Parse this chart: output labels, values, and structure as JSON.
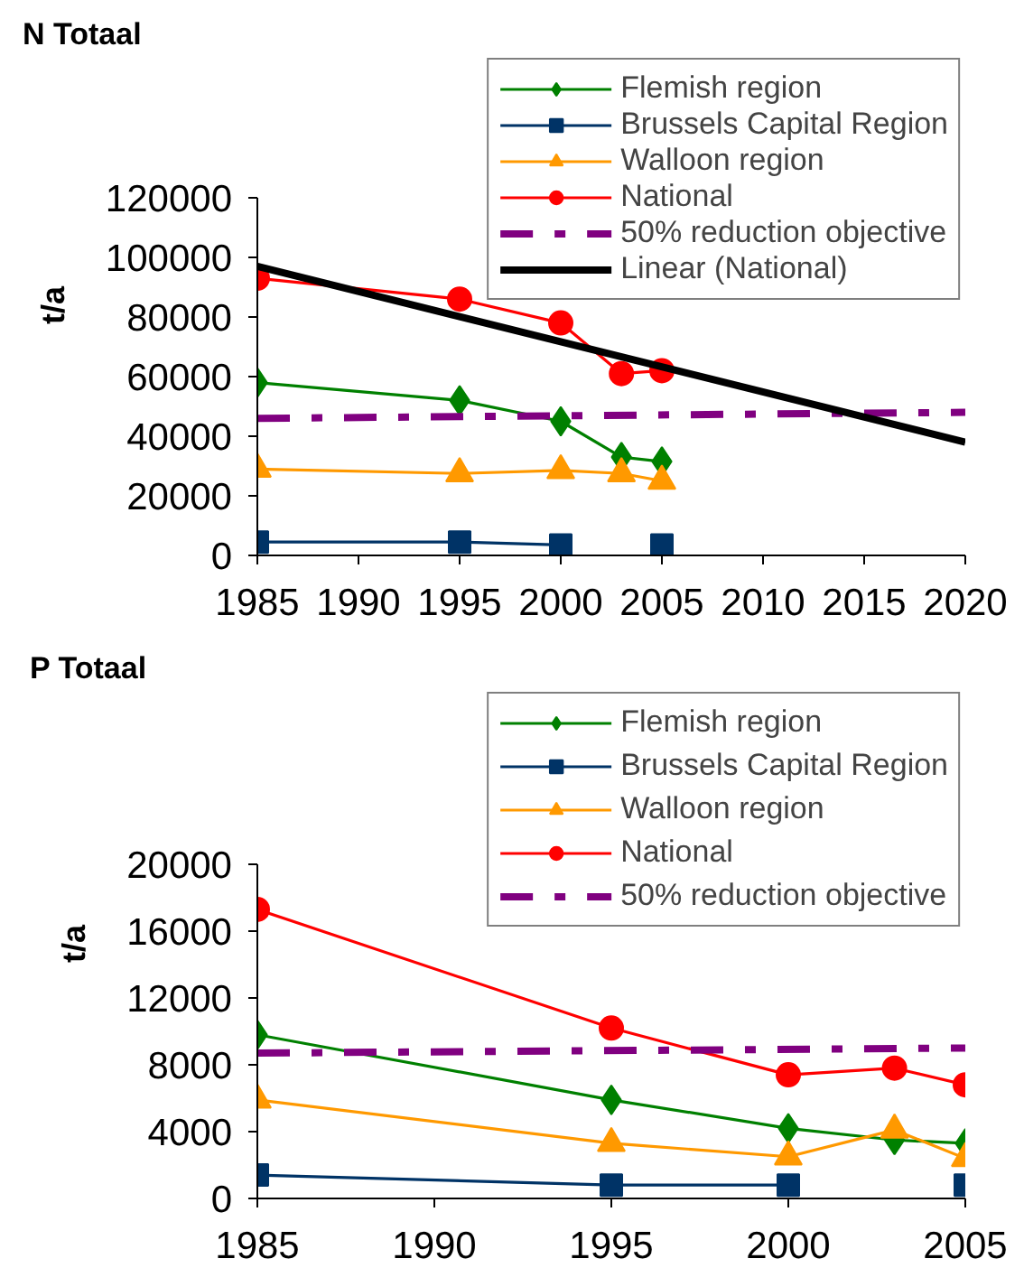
{
  "chart_data": [
    {
      "type": "line",
      "title": "N Totaal",
      "ylabel": "t/a",
      "x": [
        1985,
        1995,
        2000,
        2003,
        2005
      ],
      "xlim": [
        1985,
        2020
      ],
      "xticks": [
        1985,
        1990,
        1995,
        2000,
        2005,
        2010,
        2015,
        2020
      ],
      "ylim": [
        0,
        120000
      ],
      "yticks": [
        0,
        20000,
        40000,
        60000,
        80000,
        100000,
        120000
      ],
      "legend": "top right",
      "series": [
        {
          "name": "Flemish region",
          "color": "#008000",
          "marker": "diamond",
          "values": [
            58000,
            52000,
            45000,
            33000,
            31500
          ]
        },
        {
          "name": "Brussels Capital Region",
          "color": "#003366",
          "marker": "square",
          "values": [
            4500,
            4500,
            3500,
            null,
            3500
          ]
        },
        {
          "name": "Walloon region",
          "color": "#ff9900",
          "marker": "triangle",
          "values": [
            29000,
            27500,
            28500,
            27500,
            25000
          ]
        },
        {
          "name": "National",
          "color": "#ff0000",
          "marker": "circle",
          "values": [
            93000,
            86000,
            78000,
            61000,
            62000
          ]
        },
        {
          "name": "50% reduction objective",
          "color": "#800080",
          "marker": "none",
          "line_style": "dashed",
          "x": [
            1985,
            2020
          ],
          "values": [
            46000,
            48000
          ]
        },
        {
          "name": "Linear (National)",
          "color": "#000000",
          "marker": "none",
          "x": [
            1985,
            2020
          ],
          "values": [
            97000,
            38000
          ]
        }
      ]
    },
    {
      "type": "line",
      "title": "P Totaal",
      "ylabel": "t/a",
      "x": [
        1985,
        1995,
        2000,
        2003,
        2005
      ],
      "xlim": [
        1985,
        2005
      ],
      "xticks": [
        1985,
        1990,
        1995,
        2000,
        2005
      ],
      "ylim": [
        0,
        20000
      ],
      "yticks": [
        0,
        4000,
        8000,
        12000,
        16000,
        20000
      ],
      "legend": "top right",
      "series": [
        {
          "name": "Flemish region",
          "color": "#008000",
          "marker": "diamond",
          "values": [
            9800,
            5900,
            4200,
            3500,
            3300
          ]
        },
        {
          "name": "Brussels Capital Region",
          "color": "#003366",
          "marker": "square",
          "values": [
            1400,
            800,
            800,
            null,
            800
          ]
        },
        {
          "name": "Walloon region",
          "color": "#ff9900",
          "marker": "triangle",
          "values": [
            5900,
            3300,
            2500,
            4100,
            2400
          ]
        },
        {
          "name": "National",
          "color": "#ff0000",
          "marker": "circle",
          "values": [
            17300,
            10200,
            7400,
            7800,
            6800
          ]
        },
        {
          "name": "50% reduction objective",
          "color": "#800080",
          "marker": "none",
          "line_style": "dashed",
          "x": [
            1985,
            2005
          ],
          "values": [
            8700,
            9000
          ]
        }
      ]
    }
  ]
}
